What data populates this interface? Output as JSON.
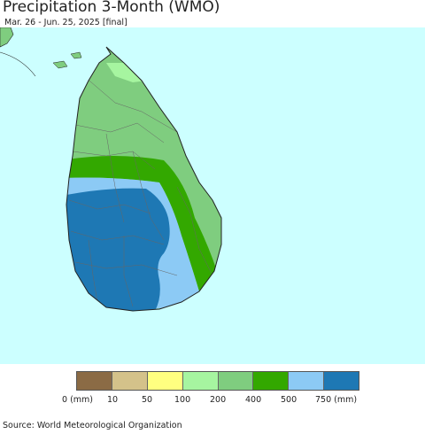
{
  "title": "Precipitation 3-Month (WMO)",
  "subtitle": "Mar. 26 - Jun. 25, 2025 [final]",
  "legend": {
    "colors": [
      "#8b6b45",
      "#d4c28a",
      "#ffff80",
      "#a6f5a0",
      "#7fcd7f",
      "#33a800",
      "#8ccaf5",
      "#1e78b4"
    ],
    "labels": [
      "0 (mm)",
      "10",
      "50",
      "100",
      "200",
      "400",
      "500",
      "750 (mm)"
    ]
  },
  "map": {
    "ocean_color": "#ccffff",
    "region": "Sri Lanka"
  },
  "source": "Source: World Meteorological Organization"
}
